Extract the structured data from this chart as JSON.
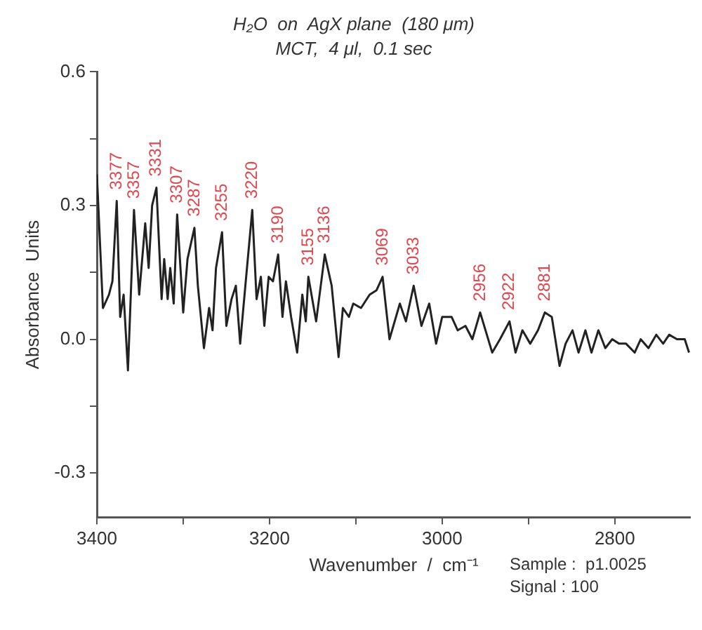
{
  "chart_data": {
    "type": "line",
    "title": "H₂O  on  AgX plane  (180 μm)",
    "subtitle": "MCT,  4 μl,  0.1 sec",
    "xlabel": "Wavenumber  /  cm⁻¹",
    "ylabel": "Absorbance  Units",
    "xlim": [
      3400,
      2712
    ],
    "ylim": [
      -0.4,
      0.6
    ],
    "xticks": [
      3400,
      {
        "value": 3300,
        "label": null
      },
      3200,
      {
        "value": 3100,
        "label": null
      },
      3000,
      {
        "value": 2900,
        "label": null
      },
      2800
    ],
    "yticks": [
      -0.3,
      {
        "value": -0.15,
        "label": null
      },
      {
        "value": 0,
        "label": "0.0"
      },
      {
        "value": 0.15,
        "label": null
      },
      0.3,
      {
        "value": 0.45,
        "label": null
      },
      0.6
    ],
    "grid": false,
    "legend": false,
    "marker": "none",
    "line_style": "solid",
    "series": [
      {
        "color": "#222222",
        "x": [
          3400,
          3393,
          3386,
          3382,
          3377,
          3373,
          3369,
          3364,
          3357,
          3351,
          3344,
          3340,
          3336,
          3331,
          3325,
          3322,
          3318,
          3315,
          3311,
          3307,
          3300,
          3295,
          3287,
          3283,
          3276,
          3270,
          3266,
          3262,
          3255,
          3250,
          3244,
          3239,
          3234,
          3228,
          3220,
          3215,
          3210,
          3206,
          3201,
          3196,
          3190,
          3185,
          3181,
          3175,
          3168,
          3162,
          3158,
          3155,
          3146,
          3136,
          3128,
          3120,
          3115,
          3108,
          3103,
          3094,
          3084,
          3076,
          3069,
          3061,
          3049,
          3042,
          3033,
          3024,
          3015,
          3007,
          3000,
          2989,
          2982,
          2973,
          2965,
          2956,
          2942,
          2933,
          2922,
          2915,
          2907,
          2898,
          2889,
          2881,
          2873,
          2864,
          2857,
          2849,
          2842,
          2834,
          2827,
          2819,
          2811,
          2803,
          2795,
          2787,
          2777,
          2770,
          2761,
          2752,
          2744,
          2737,
          2728,
          2719,
          2714
        ],
        "values": [
          0.37,
          0.07,
          0.1,
          0.13,
          0.31,
          0.05,
          0.1,
          -0.07,
          0.29,
          0.1,
          0.26,
          0.16,
          0.3,
          0.34,
          0.09,
          0.18,
          0.09,
          0.16,
          0.08,
          0.28,
          0.06,
          0.18,
          0.25,
          0.12,
          -0.02,
          0.07,
          0.02,
          0.16,
          0.24,
          0.03,
          0.09,
          0.12,
          -0.01,
          0.12,
          0.29,
          0.09,
          0.14,
          0.03,
          0.14,
          0.13,
          0.19,
          0.05,
          0.13,
          0.05,
          -0.03,
          0.1,
          0.04,
          0.14,
          0.04,
          0.19,
          0.12,
          -0.04,
          0.07,
          0.05,
          0.08,
          0.07,
          0.1,
          0.11,
          0.14,
          0.0,
          0.08,
          0.04,
          0.12,
          0.03,
          0.08,
          -0.01,
          0.05,
          0.05,
          0.02,
          0.03,
          0.0,
          0.06,
          -0.03,
          0.0,
          0.04,
          -0.03,
          0.02,
          -0.01,
          0.02,
          0.06,
          0.05,
          -0.06,
          -0.01,
          0.02,
          -0.03,
          0.02,
          -0.03,
          0.02,
          -0.02,
          0.0,
          -0.01,
          -0.01,
          -0.03,
          0.0,
          -0.02,
          0.01,
          -0.01,
          0.01,
          0.0,
          0.0,
          -0.03
        ]
      }
    ],
    "annotations": [
      {
        "text": "3377",
        "x": 3377,
        "y": 0.31
      },
      {
        "text": "3357",
        "x": 3357,
        "y": 0.29
      },
      {
        "text": "3331",
        "x": 3331,
        "y": 0.34
      },
      {
        "text": "3307",
        "x": 3307,
        "y": 0.28
      },
      {
        "text": "3287",
        "x": 3287,
        "y": 0.25
      },
      {
        "text": "3255",
        "x": 3255,
        "y": 0.24
      },
      {
        "text": "3220",
        "x": 3220,
        "y": 0.29
      },
      {
        "text": "3190",
        "x": 3190,
        "y": 0.19
      },
      {
        "text": "3155",
        "x": 3155,
        "y": 0.14
      },
      {
        "text": "3136",
        "x": 3136,
        "y": 0.19
      },
      {
        "text": "3069",
        "x": 3069,
        "y": 0.14
      },
      {
        "text": "3033",
        "x": 3033,
        "y": 0.12
      },
      {
        "text": "2956",
        "x": 2956,
        "y": 0.06
      },
      {
        "text": "2922",
        "x": 2922,
        "y": 0.04
      },
      {
        "text": "2881",
        "x": 2881,
        "y": 0.06
      },
      "Sample :  p1.0025",
      "Signal : 100"
    ]
  }
}
